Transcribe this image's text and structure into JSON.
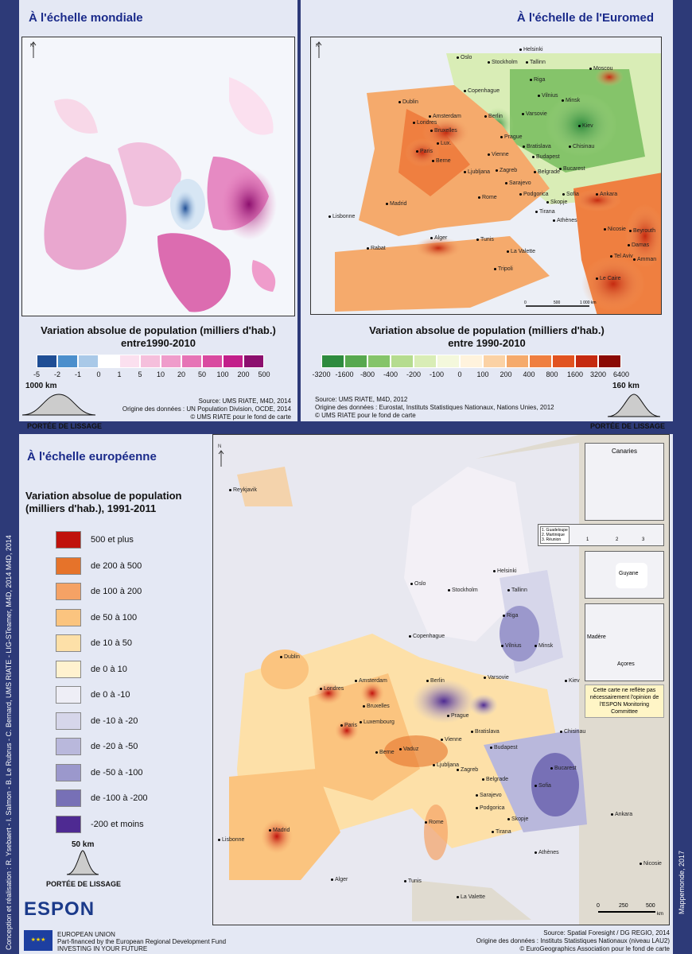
{
  "world": {
    "title": "À l'échelle mondiale",
    "legend_title": "Variation absolue de population (milliers d'hab.)",
    "legend_sub": "entre1990-2010",
    "scale_colors": [
      "#1f4e95",
      "#4c8fcc",
      "#a9c9e8",
      "#ffffff",
      "#fbe0ef",
      "#f5bfdc",
      "#ef9ccb",
      "#e674b6",
      "#d94aa0",
      "#c21f8a",
      "#8c0f6e"
    ],
    "scale_ticks": [
      "-5",
      "-2",
      "-1",
      "0",
      "1",
      "5",
      "10",
      "20",
      "50",
      "100",
      "200",
      "500"
    ],
    "smoothing": "1000 km",
    "smoothing_label": "PORTÉE DE LISSAGE",
    "source1": "Source: UMS RIATE, M4D, 2014",
    "source2": "Origine des données : UN Population Division, OCDE, 2014",
    "source3": "© UMS RIATE pour le fond de carte"
  },
  "euromed": {
    "title": "À l'échelle de l'Euromed",
    "legend_title": "Variation absolue de population (milliers d'hab.)",
    "legend_sub": "entre 1990-2010",
    "scale_colors": [
      "#2e8b3e",
      "#57a84f",
      "#85c46a",
      "#b5dc8f",
      "#d9edb6",
      "#f4f8dc",
      "#fff3dd",
      "#fbd2a5",
      "#f5aa6c",
      "#ef7f40",
      "#e15320",
      "#c52a10",
      "#8a0a05"
    ],
    "scale_ticks": [
      "-3200",
      "-1600",
      "-800",
      "-400",
      "-200",
      "-100",
      "0",
      "100",
      "200",
      "400",
      "800",
      "1600",
      "3200",
      "6400"
    ],
    "smoothing": "160 km",
    "smoothing_label": "PORTÉE DE LISSAGE",
    "source1": "Source: UMS RIATE, M4D, 2012",
    "source2": "Origine des données : Eurostat, Instituts Statistiques Nationaux, Nations Unies, 2012",
    "source3": "© UMS RIATE pour le fond de carte",
    "scale_bar": [
      "0",
      "500",
      "1 000 km"
    ],
    "cities": [
      "Oslo",
      "Stockholm",
      "Helsinki",
      "Tallinn",
      "Moscou",
      "Riga",
      "Copenhague",
      "Vilnius",
      "Minsk",
      "Dublin",
      "Amsterdam",
      "Berlin",
      "Varsovie",
      "Londres",
      "Bruxelles",
      "Kiev",
      "Lux.",
      "Prague",
      "Paris",
      "Bratislava",
      "Chisinau",
      "Vienne",
      "Budapest",
      "Berne",
      "Zagreb",
      "Bucarest",
      "Ljubljana",
      "Belgrade",
      "Sarajevo",
      "Podgorica",
      "Sofia",
      "Rome",
      "Skopje",
      "Madrid",
      "Tirana",
      "Ankara",
      "Lisbonne",
      "Athènes",
      "Alger",
      "Tunis",
      "Nicosie",
      "Rabat",
      "Beyrouth",
      "La Valette",
      "Damas",
      "Tel Aviv",
      "Amman",
      "Tripoli",
      "Le Caire"
    ]
  },
  "europe": {
    "title": "À l'échelle européenne",
    "legend_title": "Variation absolue de population (milliers d'hab.), 1991-2011",
    "legend": [
      {
        "label": "500 et  plus",
        "color": "#c0120c"
      },
      {
        "label": "de 200 à 500",
        "color": "#e6732a"
      },
      {
        "label": "de 100 à 200",
        "color": "#f5a265"
      },
      {
        "label": "de 50 à 100",
        "color": "#fbc47f"
      },
      {
        "label": "de 10 à 50",
        "color": "#fde0a8"
      },
      {
        "label": "de 0 à 10",
        "color": "#fff2cf"
      },
      {
        "label": "de 0 à -10",
        "color": "#eeeef6"
      },
      {
        "label": "de -10 à -20",
        "color": "#d6d6ea"
      },
      {
        "label": "de -20 à -50",
        "color": "#b9b8dc"
      },
      {
        "label": "de -50 à -100",
        "color": "#9b98cc"
      },
      {
        "label": "de -100 à -200",
        "color": "#7770b6"
      },
      {
        "label": "-200 et moins",
        "color": "#4e2a92"
      }
    ],
    "smoothing": "50 km",
    "smoothing_label": "PORTÉE DE LISSAGE",
    "insets": [
      "Canaries",
      "1. Guadeloupe",
      "2. Martinique",
      "3. Réunion",
      "1",
      "2",
      "3",
      "Guyane",
      "Madère",
      "Açores"
    ],
    "disclaimer": "Cette carte ne reflète pas nécessairement l'opinion de l'ESPON Monitoring Committee",
    "cities": [
      "Reykjavik",
      "Helsinki",
      "Oslo",
      "Stockholm",
      "Tallinn",
      "Riga",
      "Copenhague",
      "Vilnius",
      "Minsk",
      "Dublin",
      "Amsterdam",
      "Berlin",
      "Varsovie",
      "Londres",
      "Bruxelles",
      "Kiev",
      "Luxembourg",
      "Prague",
      "Paris",
      "Bratislava",
      "Vienne",
      "Chisinau",
      "Budapest",
      "Berne",
      "Vaduz",
      "Ljubljana",
      "Zagreb",
      "Bucarest",
      "Belgrade",
      "Sarajevo",
      "Podgorica",
      "Sofia",
      "Skopje",
      "Madrid",
      "Rome",
      "Tirana",
      "Ankara",
      "Lisbonne",
      "Athènes",
      "Alger",
      "Tunis",
      "Nicosie",
      "La Valette"
    ],
    "scale_bar": [
      "0",
      "250",
      "500",
      "km"
    ],
    "source1": "Source: Spatial Foresight / DG REGIO, 2014",
    "source2": "Origine des données : Instituts Statistiques Nationaux (niveau LAU2)",
    "source3": "© EuroGeographics Association pour le fond de carte"
  },
  "branding": {
    "espon": "ESPON",
    "eu_line1": "EUROPEAN UNION",
    "eu_line2": "Part-financed by the European Regional Development Fund",
    "eu_line3": "INVESTING IN YOUR FUTURE",
    "credits": "Conception et réalisation : R. Ysebaert - I. Salmon - B. Le Rubrus - C. Bernard, UMS RIATE - LIG-STeamer, M4D, 2014 M4D, 2014",
    "right_side": "Mappemonde, 2017"
  }
}
